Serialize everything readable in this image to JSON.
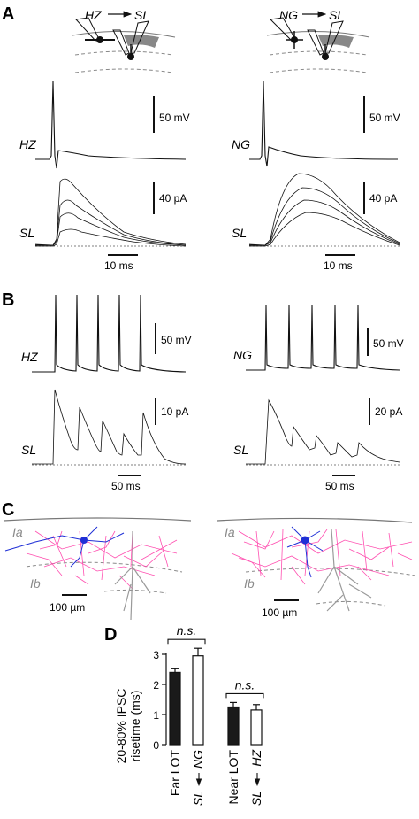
{
  "panels": {
    "A": {
      "letter": "A",
      "left": {
        "pre": "HZ",
        "post": "SL",
        "voltage_label": "HZ",
        "current_label": "SL",
        "v_scale": "50 mV",
        "i_scale": "40 pA",
        "t_scale": "10 ms"
      },
      "right": {
        "pre": "NG",
        "post": "SL",
        "voltage_label": "NG",
        "current_label": "SL",
        "v_scale": "50 mV",
        "i_scale": "40 pA",
        "t_scale": "10 ms"
      }
    },
    "B": {
      "letter": "B",
      "left": {
        "voltage_label": "HZ",
        "current_label": "SL",
        "v_scale": "50 mV",
        "i_scale": "10 pA",
        "t_scale": "50 ms"
      },
      "right": {
        "voltage_label": "NG",
        "current_label": "SL",
        "v_scale": "50 mV",
        "i_scale": "20 pA",
        "t_scale": "50 ms"
      }
    },
    "C": {
      "letter": "C",
      "left": {
        "layer_top": "Ia",
        "layer_bottom": "Ib",
        "scale": "100 µm"
      },
      "right": {
        "layer_top": "Ia",
        "layer_bottom": "Ib",
        "scale": "100 µm"
      },
      "colors": {
        "recorded_cell": "#1f2fd6",
        "partner_cell": "#ff4fb0",
        "axon": "#9a9a9a"
      }
    },
    "D": {
      "letter": "D"
    }
  },
  "chart_data": {
    "type": "bar",
    "ylabel_line1": "20-80% IPSC",
    "ylabel_line2": "risetime (ms)",
    "ylim": [
      0,
      3
    ],
    "yticks": [
      "0",
      "1",
      "2",
      "3"
    ],
    "categories": [
      {
        "line1": "Far LOT",
        "line2": ""
      },
      {
        "line1": "NG",
        "line2": "SL"
      },
      {
        "line1": "Near LOT",
        "line2": ""
      },
      {
        "line1": "HZ",
        "line2": "SL"
      }
    ],
    "values": [
      2.4,
      2.95,
      1.25,
      1.15
    ],
    "errors": [
      0.12,
      0.25,
      0.15,
      0.18
    ],
    "fills": [
      "#1a1a1a",
      "#ffffff",
      "#1a1a1a",
      "#ffffff"
    ],
    "significance": [
      {
        "pair": [
          0,
          1
        ],
        "text": "n.s."
      },
      {
        "pair": [
          2,
          3
        ],
        "text": "n.s."
      }
    ]
  }
}
